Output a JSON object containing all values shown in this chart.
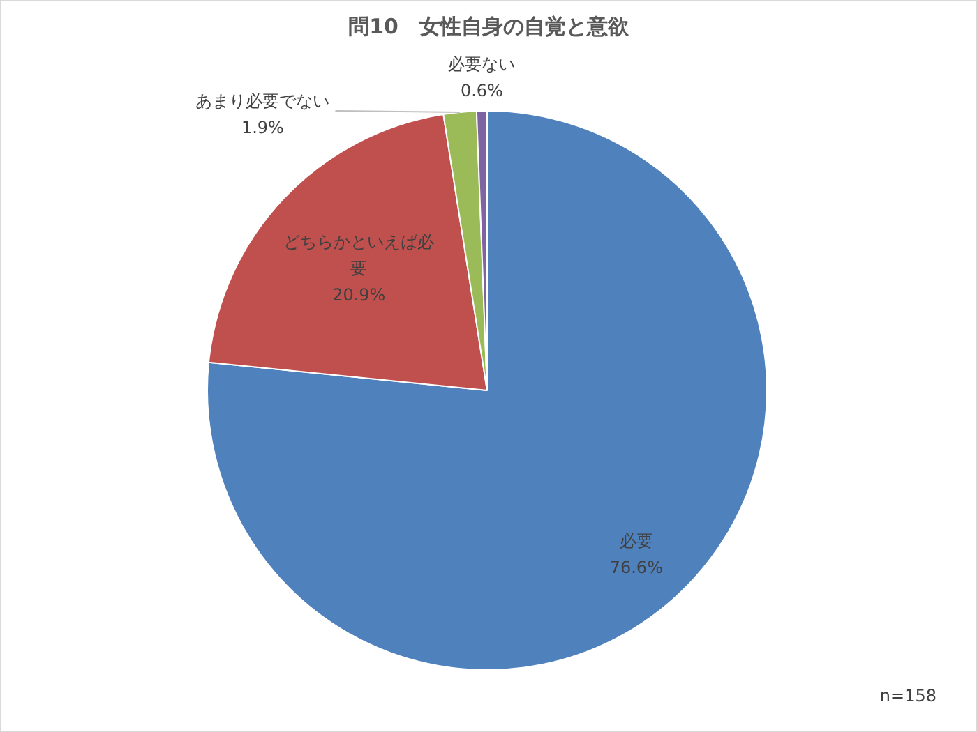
{
  "chart_data": {
    "type": "pie",
    "title": "問10　女性自身の自覚と意欲",
    "categories": [
      "必要",
      "どちらかといえば必要",
      "あまり必要でない",
      "必要ない"
    ],
    "values": [
      76.6,
      20.9,
      1.9,
      0.6
    ],
    "colors": [
      "#4f81bd",
      "#c0504d",
      "#9bbb59",
      "#8064a2"
    ],
    "value_labels": [
      "76.6%",
      "20.9%",
      "1.9%",
      "0.6%"
    ],
    "annotations": [
      "n=158"
    ]
  }
}
